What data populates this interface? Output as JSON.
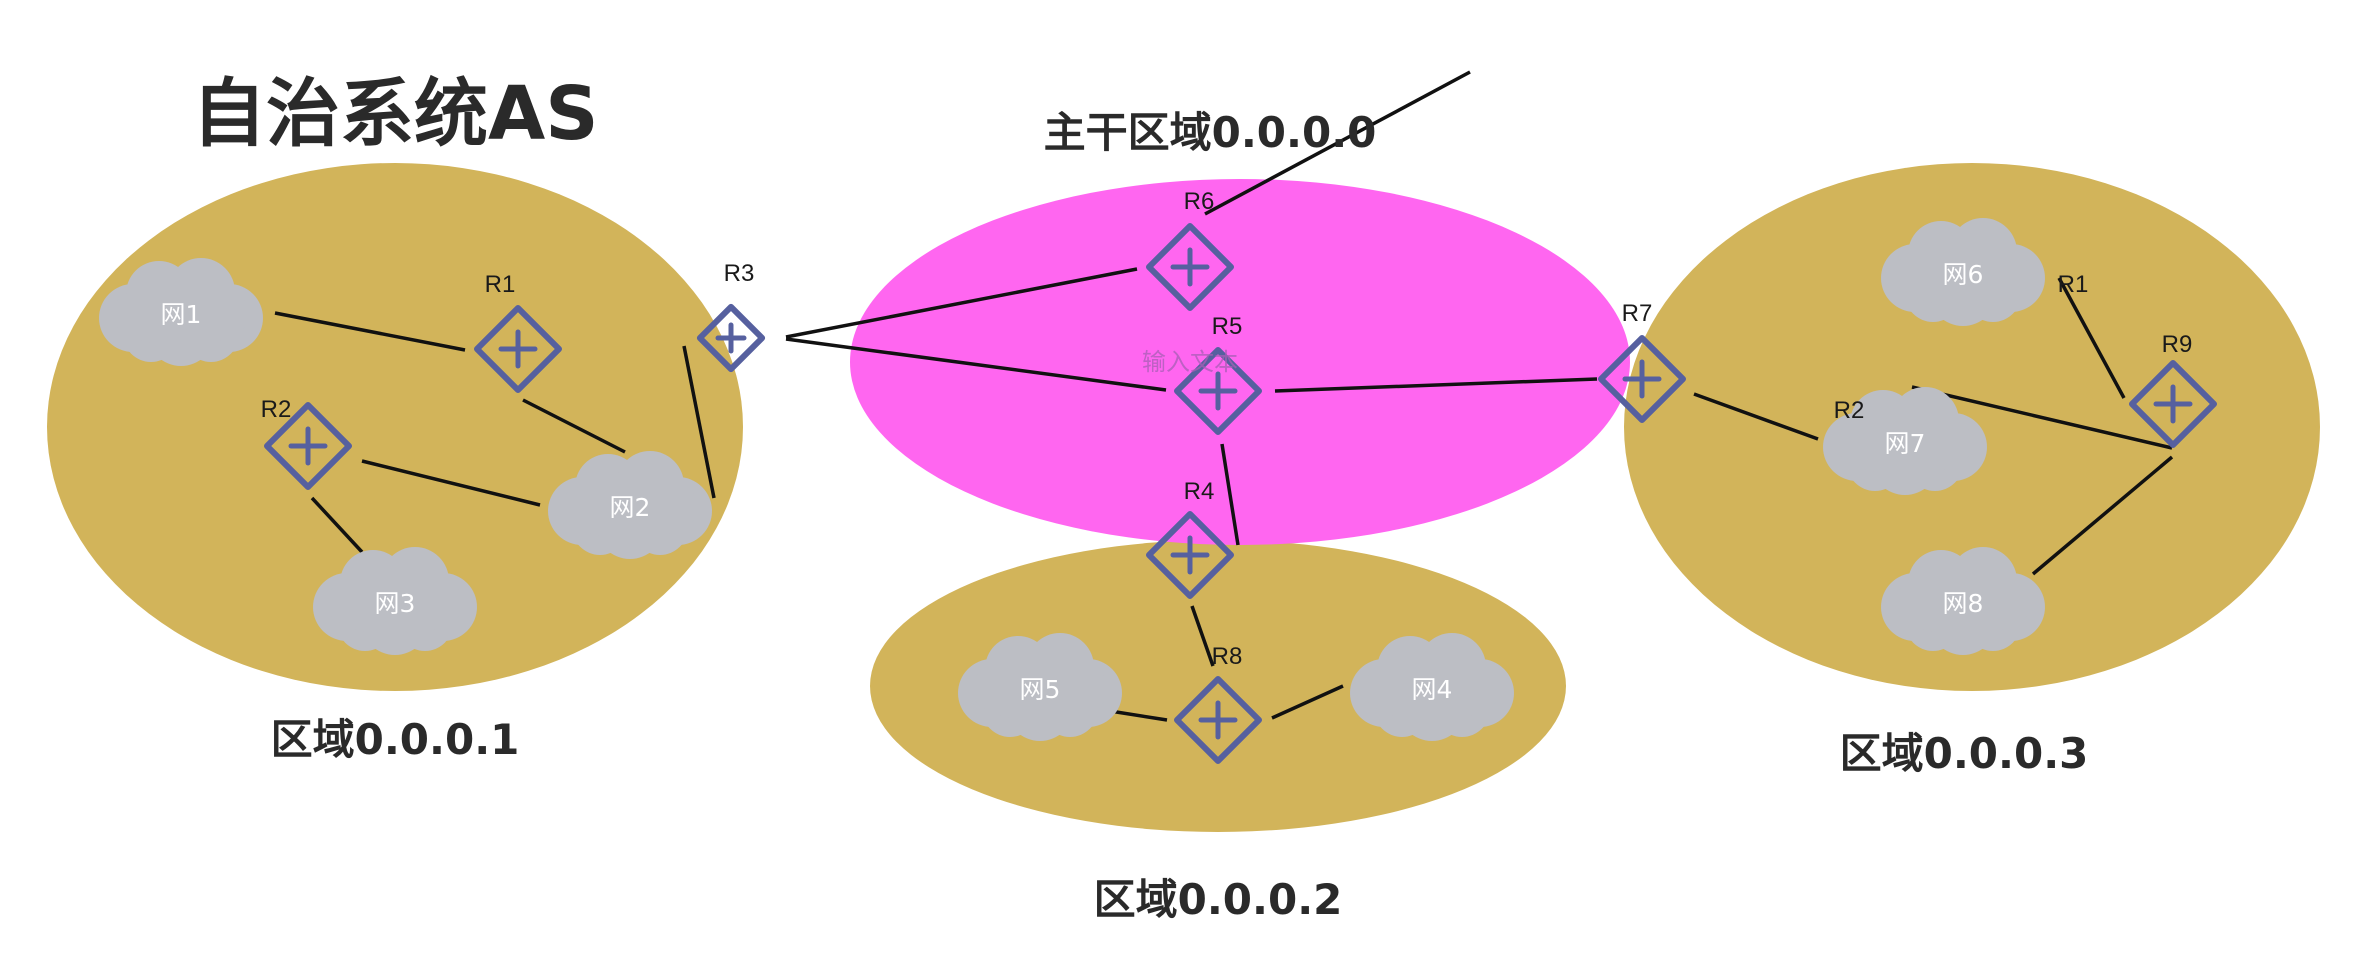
{
  "title": "自治系统AS",
  "placeholder_text": "输入文本",
  "colors": {
    "area": "#d2b45a",
    "backbone": "#ff66f0",
    "router": "#56609f",
    "cloud": "#bcbec4",
    "link": "#111111"
  },
  "areas": [
    {
      "id": "area1",
      "label": "区域0.0.0.1"
    },
    {
      "id": "backbone",
      "label": "主干区域0.0.0.0"
    },
    {
      "id": "area2",
      "label": "区域0.0.0.2"
    },
    {
      "id": "area3",
      "label": "区域0.0.0.3"
    }
  ],
  "routers": [
    {
      "id": "a1r1",
      "label": "R1",
      "icon": "router-icon"
    },
    {
      "id": "a1r2",
      "label": "R2",
      "icon": "router-icon"
    },
    {
      "id": "r3",
      "label": "R3",
      "icon": "router-icon"
    },
    {
      "id": "r6",
      "label": "R6",
      "icon": "router-icon"
    },
    {
      "id": "r5",
      "label": "R5",
      "icon": "router-icon"
    },
    {
      "id": "r4",
      "label": "R4",
      "icon": "router-icon"
    },
    {
      "id": "r8",
      "label": "R8",
      "icon": "router-icon"
    },
    {
      "id": "r7",
      "label": "R7",
      "icon": "router-icon"
    },
    {
      "id": "r9",
      "label": "R9",
      "icon": "router-icon"
    },
    {
      "id": "a3r1",
      "label": "R1",
      "icon": "router-icon"
    },
    {
      "id": "a3r2",
      "label": "R2",
      "icon": "router-icon"
    }
  ],
  "networks": [
    {
      "id": "n1",
      "label": "网1",
      "icon": "cloud-icon"
    },
    {
      "id": "n2",
      "label": "网2",
      "icon": "cloud-icon"
    },
    {
      "id": "n3",
      "label": "网3",
      "icon": "cloud-icon"
    },
    {
      "id": "n4",
      "label": "网4",
      "icon": "cloud-icon"
    },
    {
      "id": "n5",
      "label": "网5",
      "icon": "cloud-icon"
    },
    {
      "id": "n6",
      "label": "网6",
      "icon": "cloud-icon"
    },
    {
      "id": "n7",
      "label": "网7",
      "icon": "cloud-icon"
    },
    {
      "id": "n8",
      "label": "网8",
      "icon": "cloud-icon"
    }
  ],
  "links": [
    [
      "n1",
      "a1r1"
    ],
    [
      "a1r1",
      "n2"
    ],
    [
      "a1r2",
      "n2"
    ],
    [
      "a1r2",
      "n3"
    ],
    [
      "r3",
      "n2"
    ],
    [
      "r3",
      "r6"
    ],
    [
      "r3",
      "r5"
    ],
    [
      "r6",
      "external"
    ],
    [
      "r5",
      "r7"
    ],
    [
      "r5",
      "r4"
    ],
    [
      "r4",
      "r8"
    ],
    [
      "n5",
      "r8"
    ],
    [
      "r8",
      "n4"
    ],
    [
      "r7",
      "n7"
    ],
    [
      "a3r2",
      "r9"
    ],
    [
      "a3r1",
      "r9"
    ],
    [
      "r9",
      "n8"
    ]
  ]
}
